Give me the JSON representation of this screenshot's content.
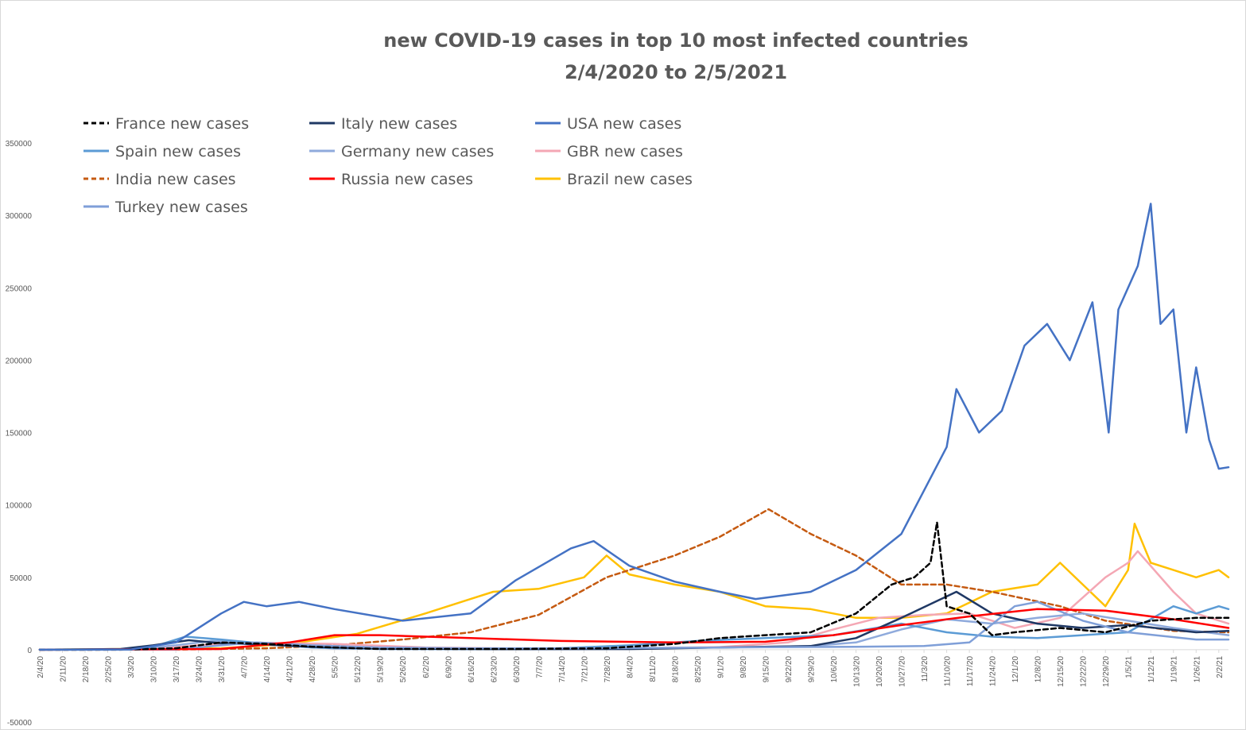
{
  "chart_data": {
    "type": "line",
    "title": [
      "new COVID-19 cases in top 10 most infected countries",
      "2/4/2020 to 2/5/2021"
    ],
    "xlabel": "",
    "ylabel": "",
    "ylim": [
      -50000,
      350000
    ],
    "yticks": [
      -50000,
      0,
      50000,
      100000,
      150000,
      200000,
      250000,
      300000,
      350000
    ],
    "grid": false,
    "legend_position": "top-left",
    "x_start": "2/4/20",
    "x_end": "2/5/21",
    "x_tick_labels": [
      "2/4/20",
      "2/11/20",
      "2/18/20",
      "2/25/20",
      "3/3/20",
      "3/10/20",
      "3/17/20",
      "3/24/20",
      "3/31/20",
      "4/7/20",
      "4/14/20",
      "4/21/20",
      "4/28/20",
      "5/5/20",
      "5/12/20",
      "5/19/20",
      "5/26/20",
      "6/2/20",
      "6/9/20",
      "6/16/20",
      "6/23/20",
      "6/30/20",
      "7/7/20",
      "7/14/20",
      "7/21/20",
      "7/28/20",
      "8/4/20",
      "8/11/20",
      "8/18/20",
      "8/25/20",
      "9/1/20",
      "9/8/20",
      "9/15/20",
      "9/22/20",
      "9/29/20",
      "10/6/20",
      "10/13/20",
      "10/20/20",
      "10/27/20",
      "11/3/20",
      "11/10/20",
      "11/17/20",
      "11/24/20",
      "12/1/20",
      "12/8/20",
      "12/15/20",
      "12/22/20",
      "12/29/20",
      "1/5/21",
      "1/12/21",
      "1/19/21",
      "1/26/21",
      "2/2/21"
    ],
    "series": [
      {
        "name": "France new cases",
        "color": "#000000",
        "dash": "dashed",
        "x": [
          "2/4/20",
          "2/29/20",
          "3/17/20",
          "3/31/20",
          "4/14/20",
          "4/28/20",
          "5/19/20",
          "6/30/20",
          "7/28/20",
          "8/18/20",
          "9/1/20",
          "9/15/20",
          "9/29/20",
          "10/13/20",
          "10/24/20",
          "10/31/20",
          "11/5/20",
          "11/7/20",
          "11/10/20",
          "11/17/20",
          "11/24/20",
          "12/1/20",
          "12/15/20",
          "12/29/20",
          "1/12/21",
          "1/26/21",
          "2/5/21"
        ],
        "values": [
          0,
          0,
          1000,
          5000,
          4000,
          2000,
          500,
          500,
          1000,
          4000,
          8000,
          10000,
          12000,
          25000,
          45000,
          50000,
          60000,
          88000,
          30000,
          25000,
          10000,
          12000,
          15000,
          12000,
          20000,
          22000,
          22000
        ]
      },
      {
        "name": "Italy new cases",
        "color": "#1f3864",
        "dash": "solid",
        "x": [
          "2/4/20",
          "2/29/20",
          "3/10/20",
          "3/21/20",
          "3/31/20",
          "4/14/20",
          "4/28/20",
          "5/19/20",
          "6/30/20",
          "8/4/20",
          "9/1/20",
          "9/29/20",
          "10/13/20",
          "10/27/20",
          "11/13/20",
          "11/24/20",
          "12/8/20",
          "12/22/20",
          "1/5/21",
          "1/26/21",
          "2/5/21"
        ],
        "values": [
          0,
          500,
          3000,
          6500,
          4500,
          3500,
          2000,
          800,
          300,
          400,
          1500,
          2500,
          8000,
          22000,
          40000,
          25000,
          18000,
          15000,
          17000,
          12000,
          13000
        ]
      },
      {
        "name": "USA new cases",
        "color": "#4472c4",
        "dash": "solid",
        "x": [
          "2/4/20",
          "3/3/20",
          "3/17/20",
          "3/31/20",
          "4/7/20",
          "4/14/20",
          "4/24/20",
          "5/5/20",
          "5/26/20",
          "6/16/20",
          "6/30/20",
          "7/17/20",
          "7/24/20",
          "8/4/20",
          "8/18/20",
          "9/1/20",
          "9/12/20",
          "9/29/20",
          "10/13/20",
          "10/27/20",
          "11/3/20",
          "11/10/20",
          "11/13/20",
          "11/20/20",
          "11/27/20",
          "12/4/20",
          "12/11/20",
          "12/18/20",
          "12/25/20",
          "12/30/20",
          "1/2/21",
          "1/8/21",
          "1/12/21",
          "1/15/21",
          "1/19/21",
          "1/23/21",
          "1/26/21",
          "1/30/21",
          "2/2/21",
          "2/5/21"
        ],
        "values": [
          0,
          100,
          5000,
          25000,
          33000,
          30000,
          33000,
          28000,
          20000,
          25000,
          48000,
          70000,
          75000,
          58000,
          47000,
          40000,
          35000,
          40000,
          55000,
          80000,
          110000,
          140000,
          180000,
          150000,
          165000,
          210000,
          225000,
          200000,
          240000,
          150000,
          235000,
          265000,
          308000,
          225000,
          235000,
          150000,
          195000,
          145000,
          125000,
          126000
        ]
      },
      {
        "name": "Spain new cases",
        "color": "#5b9bd5",
        "dash": "solid",
        "x": [
          "2/4/20",
          "2/29/20",
          "3/10/20",
          "3/20/20",
          "3/31/20",
          "4/14/20",
          "4/28/20",
          "5/19/20",
          "7/7/20",
          "8/4/20",
          "8/25/20",
          "9/15/20",
          "10/6/20",
          "10/27/20",
          "11/10/20",
          "11/24/20",
          "12/8/20",
          "12/22/20",
          "1/5/21",
          "1/19/21",
          "1/26/21",
          "2/2/21",
          "2/5/21"
        ],
        "values": [
          0,
          100,
          2000,
          9000,
          7000,
          4000,
          1500,
          500,
          300,
          3000,
          6000,
          8000,
          10000,
          18000,
          12000,
          9000,
          8000,
          10000,
          12000,
          30000,
          25000,
          30000,
          28000
        ]
      },
      {
        "name": "Germany new cases",
        "color": "#8faadc",
        "dash": "solid",
        "x": [
          "2/4/20",
          "3/3/20",
          "3/17/20",
          "3/28/20",
          "4/7/20",
          "4/21/20",
          "5/5/20",
          "6/2/20",
          "7/7/20",
          "8/4/20",
          "9/1/20",
          "9/29/20",
          "10/13/20",
          "10/27/20",
          "11/10/20",
          "11/24/20",
          "12/8/20",
          "12/22/20",
          "1/5/21",
          "1/19/21",
          "2/5/21"
        ],
        "values": [
          0,
          50,
          3000,
          6000,
          5000,
          2500,
          800,
          400,
          400,
          1000,
          1500,
          2500,
          5000,
          14000,
          21000,
          18000,
          22000,
          25000,
          20000,
          15000,
          10000
        ]
      },
      {
        "name": "GBR new cases",
        "color": "#f4a7b4",
        "dash": "solid",
        "x": [
          "2/4/20",
          "3/10/20",
          "3/24/20",
          "4/7/20",
          "4/21/20",
          "5/5/20",
          "6/2/20",
          "7/7/20",
          "8/4/20",
          "9/1/20",
          "9/22/20",
          "10/6/20",
          "10/20/20",
          "11/3/20",
          "11/17/20",
          "12/1/20",
          "12/15/20",
          "12/29/20",
          "1/5/21",
          "1/8/21",
          "1/19/21",
          "1/26/21",
          "2/5/21"
        ],
        "values": [
          0,
          300,
          3000,
          5000,
          4500,
          4000,
          1500,
          600,
          900,
          1800,
          5000,
          14000,
          22000,
          24000,
          25000,
          15000,
          22000,
          50000,
          60000,
          68000,
          40000,
          25000,
          18000
        ]
      },
      {
        "name": "India new cases",
        "color": "#c55a11",
        "dash": "dashed",
        "x": [
          "2/4/20",
          "3/17/20",
          "4/14/20",
          "5/5/20",
          "5/26/20",
          "6/16/20",
          "7/7/20",
          "7/28/20",
          "8/18/20",
          "9/1/20",
          "9/16/20",
          "9/29/20",
          "10/13/20",
          "10/27/20",
          "11/10/20",
          "11/24/20",
          "12/15/20",
          "12/29/20",
          "1/19/21",
          "2/5/21"
        ],
        "values": [
          0,
          100,
          1000,
          3000,
          7000,
          12000,
          24000,
          50000,
          65000,
          78000,
          97000,
          80000,
          65000,
          45000,
          45000,
          40000,
          30000,
          20000,
          13000,
          12000
        ]
      },
      {
        "name": "Russia new cases",
        "color": "#ff0000",
        "dash": "solid",
        "x": [
          "2/4/20",
          "3/31/20",
          "4/21/20",
          "5/5/20",
          "5/19/20",
          "6/16/20",
          "7/14/20",
          "8/18/20",
          "9/15/20",
          "10/6/20",
          "10/27/20",
          "11/17/20",
          "12/8/20",
          "12/29/20",
          "1/19/21",
          "2/5/21"
        ],
        "values": [
          0,
          500,
          5000,
          10000,
          10000,
          8000,
          6000,
          5000,
          5500,
          10000,
          17000,
          23000,
          28000,
          27000,
          21000,
          15000
        ]
      },
      {
        "name": "Brazil new cases",
        "color": "#ffc000",
        "dash": "solid",
        "x": [
          "2/4/20",
          "3/31/20",
          "4/21/20",
          "5/12/20",
          "6/2/20",
          "6/16/20",
          "6/23/20",
          "7/7/20",
          "7/21/20",
          "7/28/20",
          "8/4/20",
          "8/18/20",
          "9/1/20",
          "9/15/20",
          "9/29/20",
          "10/13/20",
          "10/27/20",
          "11/10/20",
          "11/24/20",
          "12/8/20",
          "12/15/20",
          "12/22/20",
          "12/29/20",
          "1/5/21",
          "1/7/21",
          "1/12/21",
          "1/19/21",
          "1/26/21",
          "2/2/21",
          "2/5/21"
        ],
        "values": [
          0,
          1000,
          4000,
          11000,
          25000,
          35000,
          40000,
          42000,
          50000,
          65000,
          52000,
          45000,
          40000,
          30000,
          28000,
          22000,
          22000,
          25000,
          40000,
          45000,
          60000,
          45000,
          30000,
          55000,
          87000,
          60000,
          55000,
          50000,
          55000,
          50000
        ]
      },
      {
        "name": "Turkey new cases",
        "color": "#7f9fd8",
        "dash": "solid",
        "x": [
          "2/4/20",
          "3/17/20",
          "3/31/20",
          "4/11/20",
          "4/28/20",
          "5/19/20",
          "6/16/20",
          "7/14/20",
          "8/18/20",
          "9/15/20",
          "10/13/20",
          "11/3/20",
          "11/17/20",
          "12/1/20",
          "12/8/20",
          "12/22/20",
          "1/5/21",
          "1/26/21",
          "2/5/21"
        ],
        "values": [
          0,
          100,
          3000,
          5000,
          3000,
          1500,
          1000,
          1000,
          1300,
          1700,
          2000,
          2500,
          5000,
          30000,
          33000,
          20000,
          12000,
          7000,
          7000
        ]
      }
    ]
  }
}
